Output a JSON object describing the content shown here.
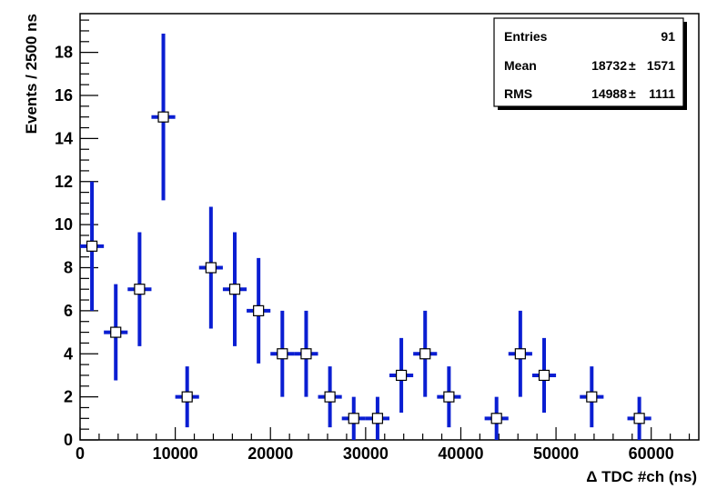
{
  "chart_data": {
    "type": "scatter",
    "title": "",
    "xlabel": "Δ TDC #ch (ns)",
    "ylabel": "Events / 2500 ns",
    "xlim": [
      0,
      65000
    ],
    "ylim": [
      0,
      19.8
    ],
    "x_ticks": [
      0,
      10000,
      20000,
      30000,
      40000,
      50000,
      60000
    ],
    "y_ticks": [
      0,
      2,
      4,
      6,
      8,
      10,
      12,
      14,
      16,
      18
    ],
    "bin_width": 2500,
    "grid": false,
    "marker": "open-square",
    "series_color": "#0a1ed2",
    "points": [
      {
        "x": 1250,
        "y": 9
      },
      {
        "x": 3750,
        "y": 5
      },
      {
        "x": 6250,
        "y": 7
      },
      {
        "x": 8750,
        "y": 15
      },
      {
        "x": 11250,
        "y": 2
      },
      {
        "x": 13750,
        "y": 8
      },
      {
        "x": 16250,
        "y": 7
      },
      {
        "x": 18750,
        "y": 6
      },
      {
        "x": 21250,
        "y": 4
      },
      {
        "x": 23750,
        "y": 4
      },
      {
        "x": 26250,
        "y": 2
      },
      {
        "x": 28750,
        "y": 1
      },
      {
        "x": 31250,
        "y": 1
      },
      {
        "x": 33750,
        "y": 3
      },
      {
        "x": 36250,
        "y": 4
      },
      {
        "x": 38750,
        "y": 2
      },
      {
        "x": 43750,
        "y": 1
      },
      {
        "x": 46250,
        "y": 4
      },
      {
        "x": 48750,
        "y": 3
      },
      {
        "x": 53750,
        "y": 2
      },
      {
        "x": 58750,
        "y": 1
      }
    ],
    "stats_box": {
      "position": "top-right",
      "rows": [
        {
          "label": "Entries",
          "value": "91",
          "error": ""
        },
        {
          "label": "Mean",
          "value": "18732",
          "error": "1571"
        },
        {
          "label": "RMS",
          "value": "14988",
          "error": "1111"
        }
      ]
    }
  }
}
